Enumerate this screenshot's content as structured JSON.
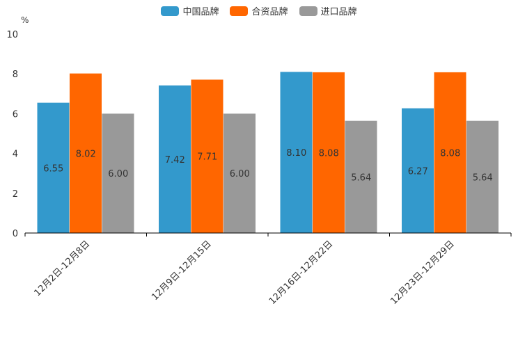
{
  "chart_data": {
    "type": "bar",
    "title": "",
    "ylabel": "%",
    "xlabel": "",
    "ylim": [
      0,
      10
    ],
    "yticks": [
      "0",
      "2",
      "4",
      "6",
      "8",
      "10"
    ],
    "categories": [
      "12月2日-12月8日",
      "12月9日-12月15日",
      "12月16日-12月22日",
      "12月23日-12月29日"
    ],
    "series": [
      {
        "name": "中国品牌",
        "color": "#3399CC",
        "values": [
          6.55,
          7.42,
          8.1,
          6.27
        ],
        "labels": [
          "6.55",
          "7.42",
          "8.10",
          "6.27"
        ]
      },
      {
        "name": "合资品牌",
        "color": "#FF6600",
        "values": [
          8.02,
          7.71,
          8.08,
          8.08
        ],
        "labels": [
          "8.02",
          "7.71",
          "8.08",
          "8.08"
        ]
      },
      {
        "name": "进口品牌",
        "color": "#999999",
        "values": [
          6.0,
          6.0,
          5.64,
          5.64
        ],
        "labels": [
          "6.00",
          "6.00",
          "5.64",
          "5.64"
        ]
      }
    ],
    "legend_position": "top-center",
    "grid": false
  }
}
